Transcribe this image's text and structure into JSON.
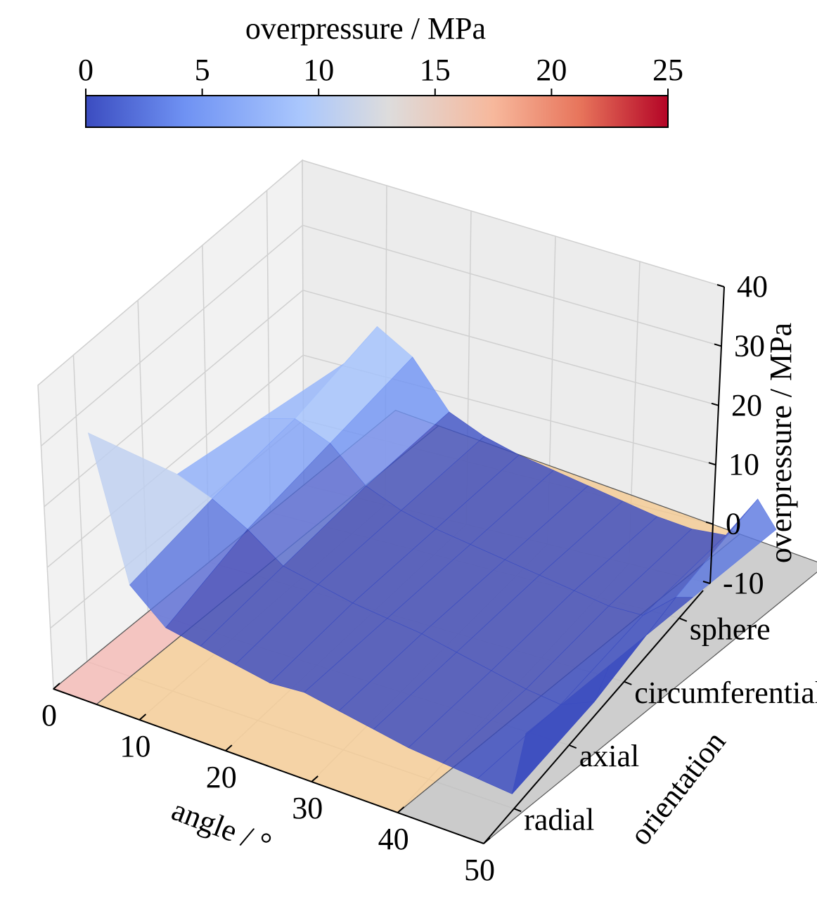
{
  "chart_data": {
    "type": "surface3d",
    "zlabel": "overpressure / MPa",
    "xlabel": "angle / °",
    "ylabel": "orientation",
    "x_ticks": [
      0,
      10,
      20,
      30,
      40,
      50
    ],
    "y_ticks": [
      "radial",
      "axial",
      "circumferential",
      "sphere"
    ],
    "z_ticks": [
      -10,
      0,
      10,
      20,
      30,
      40
    ],
    "xlim": [
      0,
      50
    ],
    "zlim": [
      -10,
      40
    ],
    "colorbar": {
      "label": "overpressure / MPa",
      "ticks": [
        0,
        5,
        10,
        15,
        20,
        25
      ],
      "range": [
        0,
        25
      ],
      "colormap": "coolwarm",
      "colors": [
        "#3b4cc0",
        "#6f92f3",
        "#aac7fd",
        "#dddcdc",
        "#f7b89c",
        "#e7745b",
        "#b40426"
      ]
    },
    "surface": {
      "angle": [
        0,
        4,
        8,
        12,
        16,
        20,
        24,
        28,
        32,
        36,
        40,
        44,
        48,
        50
      ],
      "orientations": [
        "radial",
        "axial",
        "circumferential",
        "sphere"
      ],
      "overpressure": [
        [
          26,
          3,
          -2,
          -3,
          -4,
          -5,
          -4.5,
          -5.5,
          -6.5,
          -7.5,
          -8,
          -8.5,
          -9,
          2
        ],
        [
          8,
          6,
          3,
          -1,
          -2,
          -3,
          -3.5,
          -4,
          -5,
          -6,
          -7,
          -7.5,
          -5,
          2
        ],
        [
          6,
          8,
          6,
          1,
          -1,
          -2,
          -2.5,
          -3,
          -3.5,
          -4,
          -4.5,
          -4,
          1,
          2
        ],
        [
          4,
          12,
          9,
          2,
          0,
          -1,
          -1.5,
          -2,
          -2.5,
          -3,
          -3,
          -2,
          6,
          2
        ]
      ]
    },
    "regions": [
      {
        "angle_range": [
          0,
          5
        ],
        "color": "#f4b6b0"
      },
      {
        "angle_range": [
          5,
          40
        ],
        "color": "#f5c88c"
      },
      {
        "angle_range": [
          40,
          50
        ],
        "color": "#bdbdbd"
      }
    ]
  }
}
